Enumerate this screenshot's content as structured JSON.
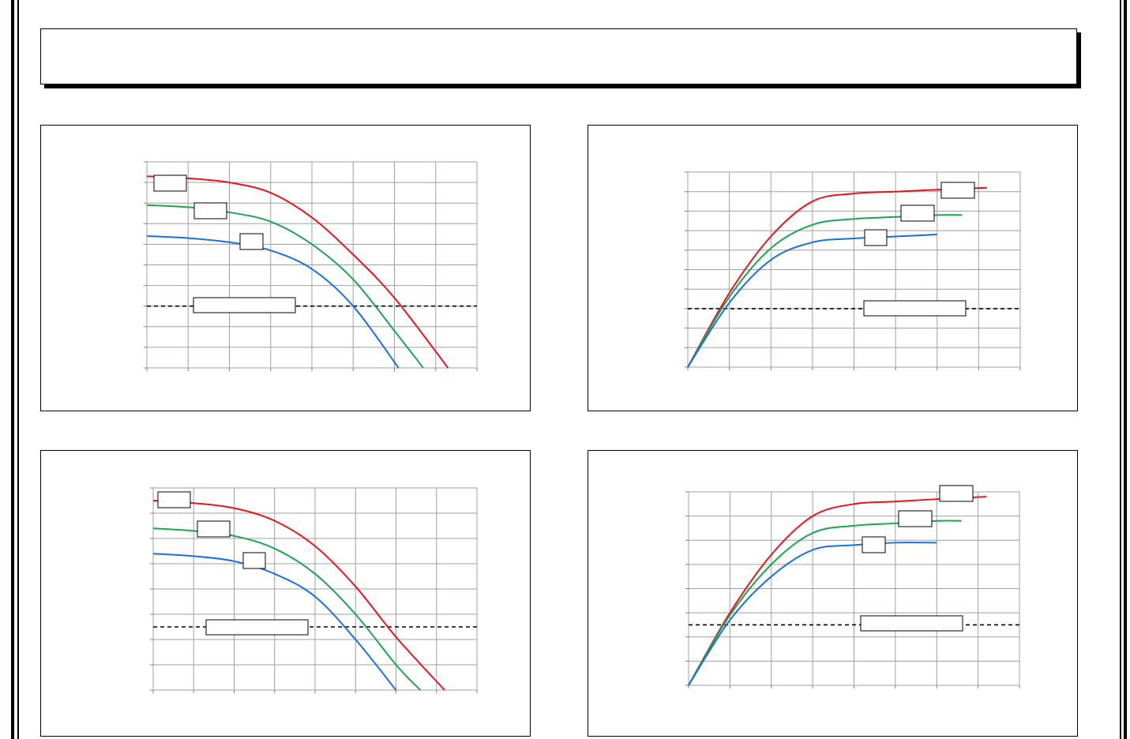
{
  "page": {
    "title": ""
  },
  "chart_data": [
    {
      "type": "line",
      "grid": true,
      "xlim": [
        0,
        8
      ],
      "ylim": [
        0,
        10
      ],
      "threshold": {
        "y": 3,
        "label": ""
      },
      "series": [
        {
          "name": "",
          "color": "#e8141c",
          "x": [
            0,
            1,
            2,
            3,
            4,
            5,
            6,
            7.3
          ],
          "y": [
            9.3,
            9.2,
            9.0,
            8.5,
            7.3,
            5.5,
            3.4,
            0
          ]
        },
        {
          "name": "",
          "color": "#1aa550",
          "x": [
            0,
            1,
            2,
            3,
            4,
            5,
            6,
            6.7
          ],
          "y": [
            7.9,
            7.8,
            7.55,
            7.1,
            6.0,
            4.3,
            1.8,
            0
          ]
        },
        {
          "name": "",
          "color": "#1a6ee6",
          "x": [
            0,
            1,
            2,
            3,
            4,
            5,
            6.1
          ],
          "y": [
            6.4,
            6.3,
            6.1,
            5.7,
            4.8,
            3.0,
            0
          ]
        }
      ]
    },
    {
      "type": "line",
      "grid": true,
      "xlim": [
        0,
        8
      ],
      "ylim": [
        0,
        10
      ],
      "threshold": {
        "y": 3,
        "label": ""
      },
      "series": [
        {
          "name": "",
          "color": "#e8141c",
          "x": [
            0,
            1,
            2,
            3,
            4,
            5,
            6,
            7.2
          ],
          "y": [
            0,
            3.8,
            6.7,
            8.5,
            8.9,
            9.0,
            9.1,
            9.2
          ]
        },
        {
          "name": "",
          "color": "#1aa550",
          "x": [
            0,
            1,
            2,
            3,
            4,
            5,
            6,
            6.6
          ],
          "y": [
            0,
            3.6,
            6.1,
            7.3,
            7.6,
            7.7,
            7.8,
            7.8
          ]
        },
        {
          "name": "",
          "color": "#1a6ee6",
          "x": [
            0,
            1,
            2,
            3,
            4,
            5,
            6
          ],
          "y": [
            0,
            3.3,
            5.5,
            6.4,
            6.6,
            6.7,
            6.8
          ]
        }
      ]
    },
    {
      "type": "line",
      "grid": true,
      "xlim": [
        0,
        8
      ],
      "ylim": [
        0,
        8
      ],
      "threshold": {
        "y": 2.5,
        "label": ""
      },
      "series": [
        {
          "name": "",
          "color": "#e8141c",
          "x": [
            0,
            1,
            2,
            3,
            4,
            5,
            6,
            7.2
          ],
          "y": [
            7.5,
            7.4,
            7.2,
            6.7,
            5.7,
            4.1,
            2.1,
            0
          ]
        },
        {
          "name": "",
          "color": "#1aa550",
          "x": [
            0,
            1,
            2,
            3,
            4,
            5,
            6,
            6.6
          ],
          "y": [
            6.4,
            6.3,
            6.1,
            5.6,
            4.6,
            3.0,
            1.0,
            0
          ]
        },
        {
          "name": "",
          "color": "#1a6ee6",
          "x": [
            0,
            1,
            2,
            3,
            4,
            5,
            6
          ],
          "y": [
            5.4,
            5.3,
            5.1,
            4.6,
            3.7,
            2.0,
            0
          ]
        }
      ]
    },
    {
      "type": "line",
      "grid": true,
      "xlim": [
        0,
        8
      ],
      "ylim": [
        0,
        8
      ],
      "threshold": {
        "y": 2.5,
        "label": ""
      },
      "series": [
        {
          "name": "",
          "color": "#e8141c",
          "x": [
            0,
            1,
            2,
            3,
            4,
            5,
            6,
            7.2
          ],
          "y": [
            0,
            3.0,
            5.4,
            7.0,
            7.5,
            7.6,
            7.7,
            7.8
          ]
        },
        {
          "name": "",
          "color": "#1aa550",
          "x": [
            0,
            1,
            2,
            3,
            4,
            5,
            6,
            6.6
          ],
          "y": [
            0,
            2.9,
            5.0,
            6.3,
            6.6,
            6.7,
            6.8,
            6.8
          ]
        },
        {
          "name": "",
          "color": "#1a6ee6",
          "x": [
            0,
            1,
            2,
            3,
            4,
            5,
            6
          ],
          "y": [
            0,
            2.7,
            4.5,
            5.6,
            5.8,
            5.9,
            5.9
          ]
        }
      ]
    }
  ]
}
